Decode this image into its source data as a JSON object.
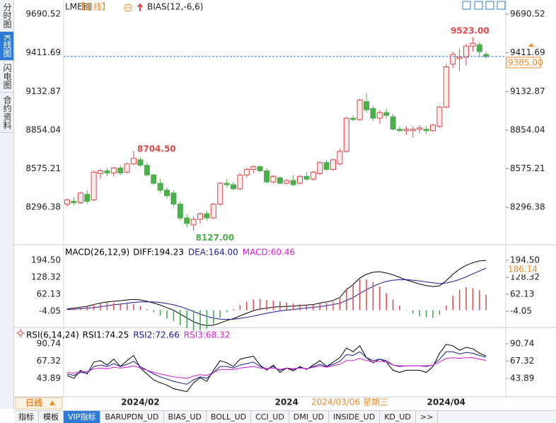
{
  "sidebar": [
    "分时图",
    "K线图",
    "闪电图",
    "合约资料"
  ],
  "sidebar_active": 1,
  "tabs": [
    "指标",
    "模板",
    "VIP指标",
    "BARUPDN_UD",
    "BIAS_UD",
    "BOLL_UD",
    "CCI_UD",
    "DMI_UD",
    "INSIDE_UD",
    "KD_UD",
    ">>"
  ],
  "tabs_active": 2,
  "chart_data": [
    {
      "type": "candlestick",
      "title": "LME铜",
      "period_label": "【日线】",
      "indicator": "BIAS(12,-6,6)",
      "ylim": [
        8031.8,
        9782.4
      ],
      "yticks": [
        9690.52,
        9411.69,
        9132.87,
        8854.04,
        8575.21,
        8296.38
      ],
      "open": [
        8320,
        8340,
        8330,
        8390,
        8350,
        8540,
        8560,
        8545,
        8580,
        8550,
        8610,
        8640,
        8600,
        8530,
        8470,
        8420,
        8400,
        8320,
        8220,
        8170,
        8210,
        8250,
        8220,
        8320,
        8470,
        8460,
        8430,
        8530,
        8570,
        8590,
        8560,
        8480,
        8510,
        8470,
        8490,
        8470,
        8520,
        8500,
        8540,
        8620,
        8570,
        8610,
        8700,
        8940,
        8930,
        9060,
        9010,
        8940,
        8980,
        8950,
        8860,
        8850,
        8850,
        8860,
        8860,
        8850,
        8880,
        9020,
        9330,
        9370,
        9380,
        9460,
        9470,
        9400
      ],
      "high": [
        8360,
        8370,
        8410,
        8420,
        8560,
        8575,
        8580,
        8590,
        8600,
        8620,
        8704.5,
        8660,
        8620,
        8540,
        8500,
        8440,
        8420,
        8340,
        8250,
        8230,
        8260,
        8270,
        8330,
        8480,
        8500,
        8480,
        8540,
        8580,
        8600,
        8600,
        8580,
        8530,
        8520,
        8500,
        8530,
        8530,
        8550,
        8560,
        8630,
        8640,
        8650,
        8720,
        8950,
        8960,
        9080,
        9120,
        9030,
        9000,
        9010,
        8970,
        8880,
        8880,
        8880,
        8890,
        8880,
        8900,
        9030,
        9330,
        9420,
        9440,
        9480,
        9523,
        9490,
        9420
      ],
      "low": [
        8300,
        8310,
        8320,
        8320,
        8340,
        8500,
        8520,
        8520,
        8530,
        8540,
        8600,
        8590,
        8520,
        8460,
        8400,
        8360,
        8300,
        8200,
        8150,
        8127,
        8180,
        8200,
        8210,
        8310,
        8440,
        8420,
        8420,
        8510,
        8540,
        8550,
        8470,
        8470,
        8460,
        8460,
        8450,
        8460,
        8490,
        8490,
        8530,
        8560,
        8560,
        8600,
        8690,
        8920,
        8920,
        8980,
        8920,
        8900,
        8940,
        8850,
        8840,
        8820,
        8800,
        8830,
        8830,
        8840,
        8870,
        9010,
        9300,
        9280,
        9320,
        9420,
        9380,
        9370
      ],
      "close": [
        8350,
        8330,
        8400,
        8340,
        8550,
        8560,
        8545,
        8580,
        8545,
        8610,
        8650,
        8600,
        8530,
        8470,
        8420,
        8380,
        8320,
        8220,
        8180,
        8210,
        8250,
        8220,
        8320,
        8470,
        8460,
        8430,
        8530,
        8570,
        8590,
        8560,
        8480,
        8520,
        8470,
        8490,
        8460,
        8520,
        8500,
        8550,
        8620,
        8570,
        8640,
        8700,
        8940,
        8930,
        9070,
        9000,
        8940,
        8980,
        8960,
        8860,
        8850,
        8860,
        8860,
        8870,
        8850,
        8890,
        9020,
        9310,
        9400,
        9380,
        9460,
        9480,
        9420,
        9385
      ],
      "up_color": "#e0474c",
      "down_color": "#4cae4c",
      "last_price": {
        "value": 9385,
        "label": "9385.00"
      },
      "max_label": "9523.00",
      "prior_max_label": "8704.50",
      "min_label": "8127.00"
    },
    {
      "type": "macd",
      "title": "MACD(26,12,9)",
      "ylim": [
        -64.7,
        252.4
      ],
      "yticks": [
        {
          "value": 194.5,
          "label": "194.50"
        },
        128.32,
        62.13,
        -4.05
      ],
      "marker": 186.14,
      "series": [
        {
          "name": "DIFF:",
          "color": "#000000",
          "style": "line",
          "values": [
            5,
            8,
            12,
            15,
            22,
            28,
            32,
            35,
            37,
            40,
            42,
            40,
            35,
            28,
            20,
            10,
            0,
            -15,
            -30,
            -45,
            -55,
            -60,
            -58,
            -50,
            -40,
            -33,
            -22,
            -12,
            -2,
            5,
            8,
            12,
            14,
            15,
            16,
            18,
            20,
            22,
            28,
            32,
            38,
            50,
            80,
            100,
            125,
            140,
            148,
            150,
            145,
            138,
            128,
            118,
            110,
            102,
            96,
            92,
            95,
            115,
            140,
            160,
            175,
            185,
            192,
            194.23
          ]
        },
        {
          "name": "DEA:",
          "color": "#1a1a9c",
          "style": "line",
          "values": [
            3,
            4,
            6,
            8,
            10,
            14,
            17,
            21,
            24,
            27,
            30,
            32,
            33,
            32,
            30,
            26,
            21,
            14,
            5,
            -5,
            -15,
            -24,
            -31,
            -35,
            -36,
            -35,
            -32,
            -28,
            -23,
            -17,
            -12,
            -7,
            -3,
            0,
            3,
            6,
            9,
            11,
            14,
            18,
            22,
            27,
            38,
            50,
            65,
            80,
            93,
            104,
            112,
            117,
            119,
            119,
            117,
            114,
            110,
            107,
            104,
            106,
            112,
            120,
            130,
            142,
            153,
            164
          ],
          "value_labels": [
            null,
            null,
            null,
            null,
            null,
            null,
            null,
            null,
            null,
            null,
            null,
            null,
            null,
            null,
            null,
            null,
            null,
            null,
            null,
            null,
            null,
            null,
            null,
            null,
            null,
            null,
            null,
            null,
            null,
            null,
            null,
            null,
            null,
            null,
            null,
            null,
            null,
            null,
            null,
            null,
            null,
            null,
            null,
            null,
            null,
            null,
            null,
            null,
            null,
            null,
            null,
            null,
            null,
            null,
            null,
            null,
            null,
            null,
            null,
            null,
            null,
            null,
            null,
            "164.00"
          ]
        },
        {
          "name": "MACD:",
          "color": "#d81bd8",
          "style": "bar",
          "up_color": "#e0474c",
          "down_color": "#3aa64c",
          "values": [
            4,
            8,
            12,
            14,
            24,
            28,
            30,
            28,
            26,
            26,
            24,
            16,
            4,
            -8,
            -20,
            -32,
            -42,
            -58,
            -70,
            -80,
            -80,
            -72,
            -54,
            -30,
            -8,
            4,
            20,
            32,
            42,
            44,
            40,
            38,
            34,
            30,
            26,
            24,
            22,
            22,
            28,
            28,
            32,
            46,
            84,
            100,
            120,
            120,
            110,
            92,
            66,
            42,
            18,
            -2,
            -14,
            -24,
            -28,
            -30,
            -18,
            18,
            56,
            80,
            90,
            86,
            78,
            60.46
          ]
        }
      ]
    },
    {
      "type": "line",
      "title": "RSI(6,14,24)",
      "ylim": [
        20,
        111.8
      ],
      "yticks": [
        90.74,
        67.32,
        43.89
      ],
      "period": "日线",
      "cursor_date": "2024/03/06 星期三",
      "categories": [
        null,
        null,
        null,
        null,
        null,
        null,
        null,
        null,
        null,
        null,
        null,
        "2024/02",
        null,
        null,
        null,
        null,
        null,
        null,
        null,
        null,
        null,
        null,
        null,
        null,
        null,
        null,
        null,
        null,
        null,
        null,
        null,
        null,
        null,
        "2024",
        null,
        null,
        null,
        null,
        null,
        null,
        null,
        null,
        null,
        null,
        null,
        null,
        null,
        null,
        null,
        null,
        null,
        null,
        null,
        null,
        null,
        null,
        null,
        "2024/04",
        null,
        null,
        null,
        null,
        null,
        null
      ],
      "series": [
        {
          "name": "RSI1:",
          "color": "#000000",
          "values": [
            48,
            44,
            55,
            50,
            66,
            68,
            62,
            70,
            60,
            68,
            75,
            58,
            50,
            42,
            38,
            35,
            30,
            28,
            26,
            38,
            45,
            40,
            55,
            68,
            65,
            60,
            70,
            72,
            74,
            62,
            55,
            62,
            52,
            58,
            54,
            60,
            56,
            62,
            68,
            60,
            66,
            72,
            85,
            80,
            88,
            72,
            65,
            70,
            66,
            55,
            52,
            55,
            55,
            55,
            52,
            60,
            78,
            90,
            88,
            82,
            86,
            84,
            78,
            74.25
          ]
        },
        {
          "name": "RSI2:",
          "color": "#1a1a9c",
          "values": [
            50,
            48,
            52,
            51,
            60,
            62,
            60,
            64,
            60,
            63,
            67,
            60,
            55,
            50,
            46,
            43,
            40,
            38,
            36,
            42,
            46,
            44,
            52,
            60,
            60,
            58,
            62,
            64,
            66,
            60,
            57,
            60,
            55,
            58,
            56,
            59,
            57,
            60,
            63,
            60,
            63,
            67,
            76,
            75,
            80,
            72,
            68,
            70,
            68,
            62,
            60,
            61,
            61,
            61,
            60,
            62,
            70,
            80,
            80,
            77,
            79,
            78,
            75,
            72.66
          ]
        },
        {
          "name": "RSI3:",
          "color": "#d81bd8",
          "values": [
            52,
            51,
            53,
            53,
            57,
            58,
            57,
            59,
            58,
            59,
            61,
            58,
            55,
            52,
            50,
            48,
            46,
            45,
            44,
            47,
            49,
            48,
            52,
            56,
            56,
            56,
            58,
            59,
            60,
            58,
            57,
            58,
            56,
            58,
            57,
            58,
            57,
            59,
            61,
            59,
            61,
            63,
            68,
            68,
            71,
            68,
            66,
            67,
            66,
            62,
            61,
            61,
            61,
            61,
            61,
            62,
            66,
            71,
            72,
            71,
            72,
            72,
            70,
            68.32
          ]
        }
      ]
    }
  ]
}
